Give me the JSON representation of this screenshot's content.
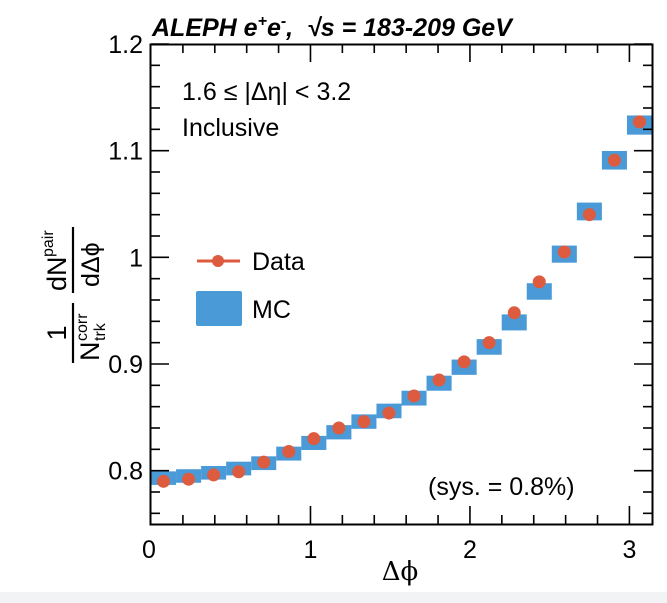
{
  "chart_data": {
    "type": "scatter",
    "title": "ALEPH e⁺e⁻,  √s = 183-209 GeV",
    "title_parts": {
      "experiment": "ALEPH e",
      "sup1": "+",
      "mid": "e",
      "sup2": "-",
      "sep": ",  ",
      "sqrt": "√",
      "energy": "s = 183-209 GeV"
    },
    "xlabel": "Δϕ",
    "ylabel": {
      "numerator_left": "1",
      "denominator_left": "N",
      "denominator_sup": "corr",
      "denominator_sub": "trk",
      "numerator_right": "dN",
      "numerator_right_sup": "pair",
      "denominator_right": "dΔϕ"
    },
    "xlim": [
      0,
      3.1416
    ],
    "ylim": [
      0.75,
      1.2
    ],
    "xticks": [
      0,
      1,
      2,
      3
    ],
    "xtick_labels": [
      "0",
      "1",
      "2",
      "3"
    ],
    "yticks": [
      0.8,
      0.9,
      1.0,
      1.1,
      1.2
    ],
    "ytick_labels": [
      "0.8",
      "0.9",
      "1",
      "1.1",
      "1.2"
    ],
    "grid": false,
    "annotations": [
      "1.6 ≤ |Δη| < 3.2",
      "Inclusive",
      "(sys. = 0.8%)"
    ],
    "legend": {
      "placement": "center-left",
      "entries": [
        {
          "label": "Data",
          "style": "marker-line"
        },
        {
          "label": "MC",
          "style": "filled-box"
        }
      ]
    },
    "colors": {
      "data": "#dd5b3e",
      "mc": "#4a9ad8"
    },
    "bins": 20,
    "x": [
      0.0785,
      0.2356,
      0.3927,
      0.5498,
      0.7069,
      0.8639,
      1.021,
      1.1781,
      1.3352,
      1.4923,
      1.6493,
      1.8064,
      1.9635,
      2.1206,
      2.2777,
      2.4347,
      2.5918,
      2.7489,
      2.906,
      3.0631
    ],
    "series": [
      {
        "name": "Data",
        "values": [
          0.79,
          0.792,
          0.796,
          0.799,
          0.808,
          0.818,
          0.83,
          0.84,
          0.846,
          0.854,
          0.87,
          0.885,
          0.902,
          0.92,
          0.948,
          0.977,
          1.005,
          1.04,
          1.091,
          1.127
        ]
      },
      {
        "name": "MC",
        "values": [
          0.793,
          0.795,
          0.798,
          0.802,
          0.807,
          0.816,
          0.826,
          0.836,
          0.846,
          0.856,
          0.868,
          0.882,
          0.897,
          0.916,
          0.939,
          0.968,
          1.003,
          1.043,
          1.091,
          1.124
        ]
      }
    ]
  }
}
